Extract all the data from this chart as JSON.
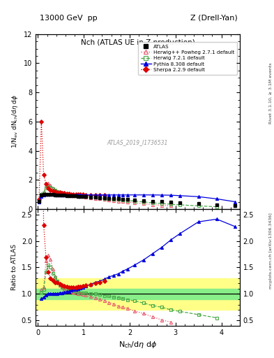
{
  "title_top": "13000 GeV  pp",
  "title_top_right": "Z (Drell-Yan)",
  "title_center": "Nch (ATLAS UE in Z production)",
  "ylabel_main": "1/N$_{ev}$ dN$_{ch}$/d$\\eta$ d$\\phi$",
  "ylabel_ratio": "Ratio to ATLAS",
  "xlabel": "N$_{ch}$/d$\\eta$ d$\\phi$",
  "right_label_top": "Rivet 3.1.10, ≥ 3.1M events",
  "right_label_bottom": "mcplots.cern.ch [arXiv:1306.3436]",
  "watermark": "ATLAS_2019_I1736531",
  "ylim_main": [
    0,
    12
  ],
  "ylim_ratio": [
    0.4,
    2.6
  ],
  "xlim": [
    -0.05,
    4.4
  ],
  "atlas_color": "#000000",
  "herwigpp_color": "#e8546a",
  "herwig721_color": "#4aaa4a",
  "pythia_color": "#0000dd",
  "sherpa_color": "#dd0000",
  "band_yellow": [
    0.7,
    1.3
  ],
  "band_green": [
    0.9,
    1.1
  ],
  "yticks_main": [
    0,
    2,
    4,
    6,
    8,
    10,
    12
  ],
  "yticks_ratio": [
    0.5,
    1.0,
    1.5,
    2.0,
    2.5
  ],
  "xticks": [
    0,
    1,
    2,
    3,
    4
  ],
  "atlas_x": [
    0.025,
    0.075,
    0.125,
    0.175,
    0.225,
    0.275,
    0.325,
    0.375,
    0.425,
    0.475,
    0.525,
    0.575,
    0.625,
    0.675,
    0.725,
    0.775,
    0.825,
    0.875,
    0.925,
    0.975,
    1.05,
    1.15,
    1.25,
    1.35,
    1.45,
    1.55,
    1.65,
    1.75,
    1.85,
    1.95,
    2.1,
    2.3,
    2.5,
    2.7,
    2.9,
    3.1,
    3.5,
    3.9,
    4.3
  ],
  "atlas_y": [
    0.55,
    0.97,
    1.02,
    1.02,
    1.01,
    1.0,
    0.99,
    0.98,
    0.97,
    0.96,
    0.95,
    0.94,
    0.93,
    0.92,
    0.91,
    0.9,
    0.89,
    0.88,
    0.87,
    0.86,
    0.84,
    0.82,
    0.8,
    0.78,
    0.76,
    0.74,
    0.72,
    0.7,
    0.68,
    0.66,
    0.63,
    0.59,
    0.55,
    0.51,
    0.47,
    0.43,
    0.36,
    0.29,
    0.22
  ],
  "atlas_err": [
    0.03,
    0.03,
    0.03,
    0.03,
    0.03,
    0.02,
    0.02,
    0.02,
    0.02,
    0.02,
    0.02,
    0.02,
    0.02,
    0.02,
    0.02,
    0.02,
    0.02,
    0.02,
    0.02,
    0.02,
    0.02,
    0.02,
    0.02,
    0.02,
    0.02,
    0.02,
    0.02,
    0.02,
    0.02,
    0.02,
    0.03,
    0.03,
    0.03,
    0.03,
    0.03,
    0.04,
    0.05,
    0.06,
    0.07
  ],
  "herwigpp_x": [
    0.025,
    0.075,
    0.125,
    0.175,
    0.225,
    0.275,
    0.325,
    0.375,
    0.425,
    0.475,
    0.525,
    0.575,
    0.625,
    0.675,
    0.725,
    0.775,
    0.825,
    0.875,
    0.925,
    0.975,
    1.05,
    1.15,
    1.25,
    1.35,
    1.45,
    1.55,
    1.65,
    1.75,
    1.85,
    1.95,
    2.1,
    2.3,
    2.5,
    2.7,
    2.9
  ],
  "herwigpp_y": [
    0.6,
    1.05,
    1.15,
    1.65,
    1.75,
    1.65,
    1.45,
    1.3,
    1.2,
    1.12,
    1.06,
    1.02,
    0.99,
    0.97,
    0.95,
    0.93,
    0.91,
    0.89,
    0.87,
    0.85,
    0.82,
    0.78,
    0.74,
    0.7,
    0.66,
    0.62,
    0.58,
    0.54,
    0.51,
    0.48,
    0.43,
    0.37,
    0.31,
    0.26,
    0.22
  ],
  "herwig721_x": [
    0.025,
    0.075,
    0.125,
    0.175,
    0.225,
    0.275,
    0.325,
    0.375,
    0.425,
    0.475,
    0.525,
    0.575,
    0.625,
    0.675,
    0.725,
    0.775,
    0.825,
    0.875,
    0.925,
    0.975,
    1.05,
    1.15,
    1.25,
    1.35,
    1.45,
    1.55,
    1.65,
    1.75,
    1.85,
    1.95,
    2.1,
    2.3,
    2.5,
    2.7,
    2.9,
    3.1,
    3.5,
    3.9
  ],
  "herwig721_y": [
    0.6,
    1.0,
    1.1,
    1.45,
    1.55,
    1.5,
    1.38,
    1.28,
    1.2,
    1.13,
    1.08,
    1.04,
    1.01,
    0.99,
    0.97,
    0.95,
    0.93,
    0.91,
    0.89,
    0.88,
    0.86,
    0.83,
    0.8,
    0.77,
    0.74,
    0.71,
    0.68,
    0.65,
    0.62,
    0.59,
    0.55,
    0.49,
    0.43,
    0.38,
    0.33,
    0.29,
    0.22,
    0.16
  ],
  "pythia_x": [
    0.025,
    0.075,
    0.125,
    0.175,
    0.225,
    0.275,
    0.325,
    0.375,
    0.425,
    0.475,
    0.525,
    0.575,
    0.625,
    0.675,
    0.725,
    0.775,
    0.825,
    0.875,
    0.925,
    0.975,
    1.05,
    1.15,
    1.25,
    1.35,
    1.45,
    1.55,
    1.65,
    1.75,
    1.85,
    1.95,
    2.1,
    2.3,
    2.5,
    2.7,
    2.9,
    3.1,
    3.5,
    3.9,
    4.3
  ],
  "pythia_y": [
    0.5,
    0.88,
    0.96,
    1.0,
    1.02,
    1.01,
    1.0,
    0.99,
    0.98,
    0.98,
    0.97,
    0.97,
    0.97,
    0.97,
    0.97,
    0.97,
    0.97,
    0.97,
    0.97,
    0.97,
    0.97,
    0.97,
    0.97,
    0.97,
    0.97,
    0.97,
    0.97,
    0.97,
    0.97,
    0.97,
    0.97,
    0.97,
    0.97,
    0.96,
    0.95,
    0.92,
    0.85,
    0.7,
    0.5
  ],
  "sherpa_x": [
    0.025,
    0.075,
    0.125,
    0.175,
    0.225,
    0.275,
    0.325,
    0.375,
    0.425,
    0.475,
    0.525,
    0.575,
    0.625,
    0.675,
    0.725,
    0.775,
    0.825,
    0.875,
    0.925,
    0.975,
    1.05,
    1.15,
    1.25,
    1.35,
    1.45
  ],
  "sherpa_y": [
    0.65,
    6.0,
    2.35,
    1.72,
    1.42,
    1.3,
    1.25,
    1.2,
    1.17,
    1.14,
    1.11,
    1.08,
    1.06,
    1.04,
    1.03,
    1.02,
    1.01,
    1.0,
    0.99,
    0.99,
    0.98,
    0.97,
    0.96,
    0.95,
    0.94
  ],
  "herwigpp_ratio_x": [
    0.075,
    0.125,
    0.175,
    0.225,
    0.275,
    0.325,
    0.375,
    0.425,
    0.475,
    0.525,
    0.575,
    0.625,
    0.675,
    0.725,
    0.775,
    0.825,
    0.875,
    0.925,
    0.975,
    1.05,
    1.15,
    1.25,
    1.35,
    1.45,
    1.55,
    1.65,
    1.75,
    1.85,
    1.95,
    2.1,
    2.3,
    2.5,
    2.7,
    2.9
  ],
  "herwigpp_ratio_y": [
    1.08,
    1.13,
    1.62,
    1.73,
    1.65,
    1.47,
    1.33,
    1.24,
    1.17,
    1.12,
    1.09,
    1.06,
    1.05,
    1.04,
    1.03,
    1.02,
    1.01,
    1.0,
    0.99,
    0.98,
    0.95,
    0.93,
    0.9,
    0.87,
    0.84,
    0.81,
    0.77,
    0.75,
    0.73,
    0.68,
    0.63,
    0.57,
    0.51,
    0.47
  ],
  "herwig721_ratio_x": [
    0.075,
    0.125,
    0.175,
    0.225,
    0.275,
    0.325,
    0.375,
    0.425,
    0.475,
    0.525,
    0.575,
    0.625,
    0.675,
    0.725,
    0.775,
    0.825,
    0.875,
    0.925,
    0.975,
    1.05,
    1.15,
    1.25,
    1.35,
    1.45,
    1.55,
    1.65,
    1.75,
    1.85,
    1.95,
    2.1,
    2.3,
    2.5,
    2.7,
    2.9,
    3.1,
    3.5,
    3.9
  ],
  "herwig721_ratio_y": [
    1.03,
    1.08,
    1.42,
    1.54,
    1.5,
    1.39,
    1.31,
    1.24,
    1.18,
    1.14,
    1.11,
    1.09,
    1.08,
    1.07,
    1.06,
    1.05,
    1.03,
    1.02,
    1.02,
    1.02,
    1.01,
    1.0,
    0.99,
    0.97,
    0.96,
    0.94,
    0.93,
    0.91,
    0.89,
    0.87,
    0.83,
    0.78,
    0.75,
    0.7,
    0.67,
    0.61,
    0.55
  ],
  "pythia_ratio_x": [
    0.075,
    0.125,
    0.175,
    0.225,
    0.275,
    0.325,
    0.375,
    0.425,
    0.475,
    0.525,
    0.575,
    0.625,
    0.675,
    0.725,
    0.775,
    0.825,
    0.875,
    0.925,
    0.975,
    1.05,
    1.15,
    1.25,
    1.35,
    1.45,
    1.55,
    1.65,
    1.75,
    1.85,
    1.95,
    2.1,
    2.3,
    2.5,
    2.7,
    2.9,
    3.1,
    3.5,
    3.9,
    4.3
  ],
  "pythia_ratio_y": [
    0.91,
    0.94,
    0.98,
    1.01,
    1.01,
    1.01,
    1.01,
    1.01,
    1.02,
    1.02,
    1.03,
    1.04,
    1.05,
    1.07,
    1.08,
    1.09,
    1.1,
    1.11,
    1.13,
    1.15,
    1.18,
    1.22,
    1.24,
    1.28,
    1.32,
    1.35,
    1.38,
    1.43,
    1.47,
    1.54,
    1.64,
    1.76,
    1.88,
    2.02,
    2.14,
    2.36,
    2.41,
    2.27
  ],
  "sherpa_ratio_x": [
    0.075,
    0.125,
    0.175,
    0.225,
    0.275,
    0.325,
    0.375,
    0.425,
    0.475,
    0.525,
    0.575,
    0.625,
    0.675,
    0.725,
    0.775,
    0.825,
    0.875,
    0.925,
    0.975,
    1.05,
    1.15,
    1.25,
    1.35,
    1.45
  ],
  "sherpa_ratio_y": [
    6.19,
    2.3,
    1.69,
    1.41,
    1.3,
    1.26,
    1.22,
    1.21,
    1.19,
    1.17,
    1.15,
    1.14,
    1.13,
    1.13,
    1.13,
    1.13,
    1.14,
    1.14,
    1.15,
    1.16,
    1.18,
    1.2,
    1.22,
    1.24
  ]
}
